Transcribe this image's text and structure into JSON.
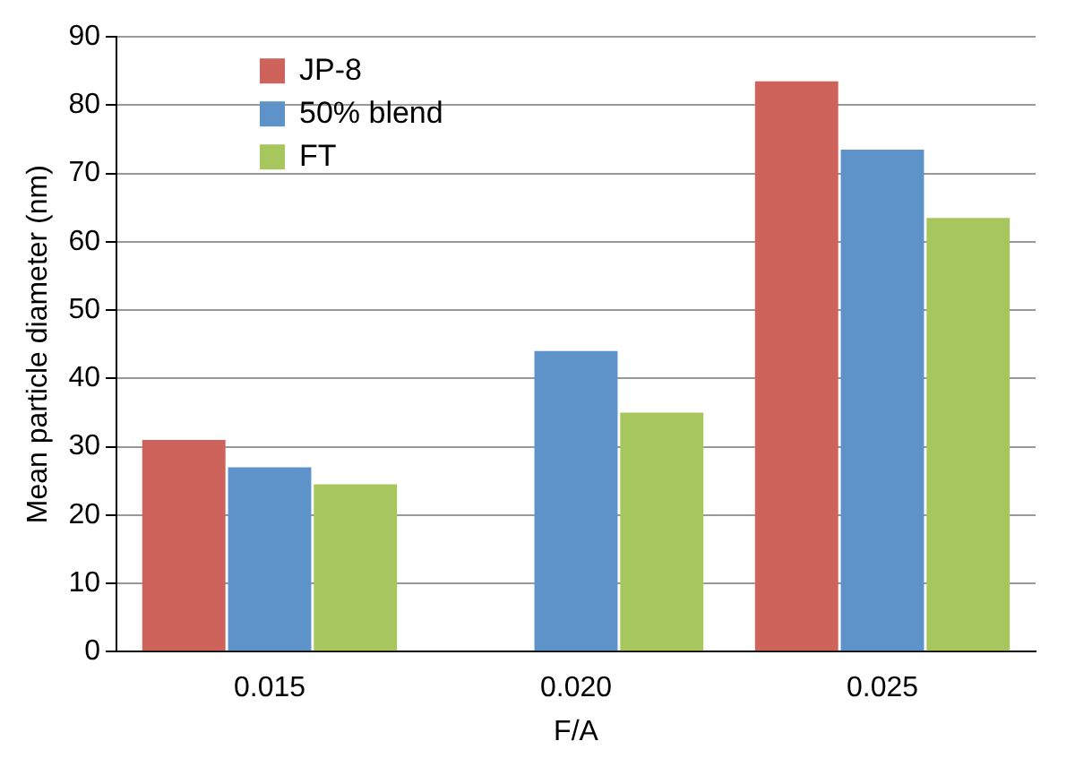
{
  "chart_data": {
    "type": "bar",
    "xlabel": "F/A",
    "ylabel": "Mean particle diameter (nm)",
    "categories": [
      "0.015",
      "0.020",
      "0.025"
    ],
    "series": [
      {
        "name": "JP-8",
        "color": "#cd635b",
        "values": [
          31,
          null,
          83.5
        ]
      },
      {
        "name": "50% blend",
        "color": "#5e93c9",
        "values": [
          27,
          44,
          73.5
        ]
      },
      {
        "name": "FT",
        "color": "#a7c65e",
        "values": [
          24.5,
          35,
          63.5
        ]
      }
    ],
    "ylim": [
      0,
      90
    ],
    "yticks": [
      0,
      10,
      20,
      30,
      40,
      50,
      60,
      70,
      80,
      90
    ],
    "grid": "y",
    "legend": "top left"
  }
}
